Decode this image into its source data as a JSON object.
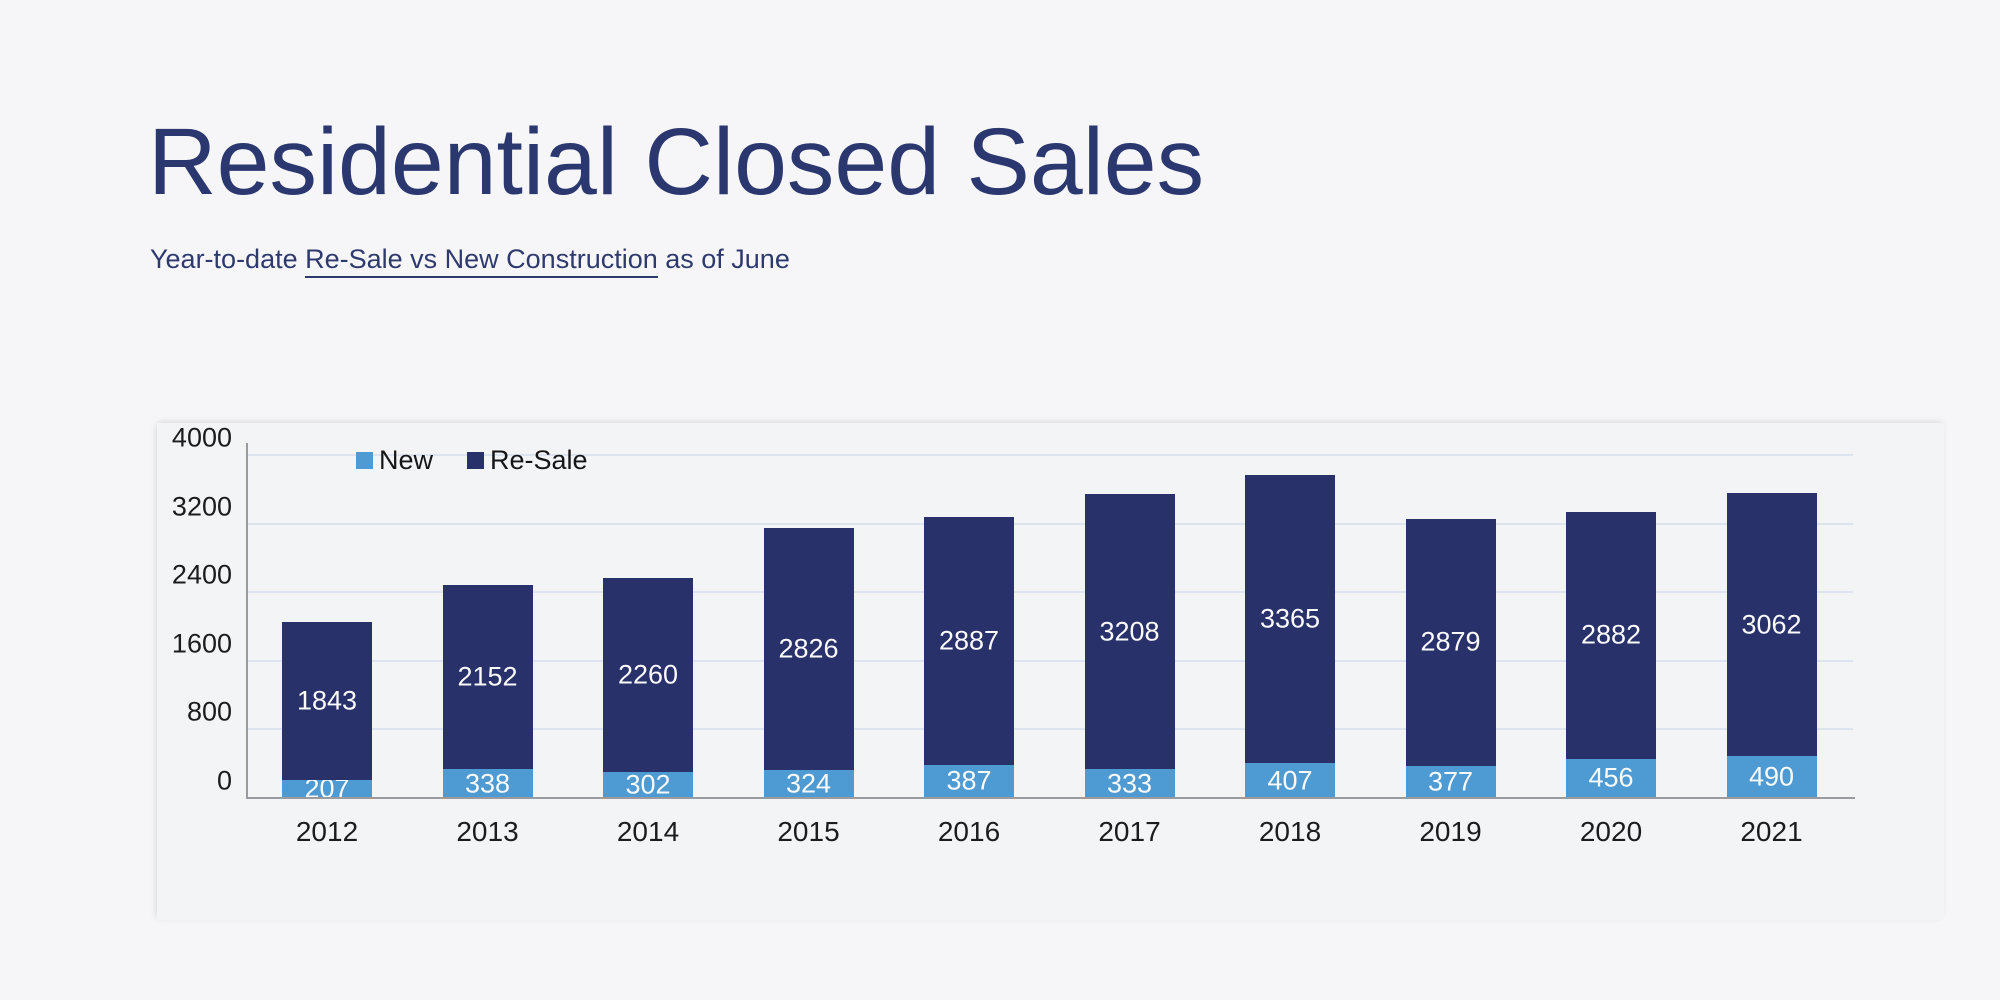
{
  "page": {
    "background": "#f6f6f8"
  },
  "header": {
    "title": "Residential Closed Sales",
    "subtitle_prefix": "Year-to-date ",
    "subtitle_underlined": "Re-Sale vs New Construction",
    "subtitle_suffix": " as of June"
  },
  "chart_data": {
    "type": "bar",
    "stacked": true,
    "title": "Residential Closed Sales",
    "subtitle": "Year-to-date Re-Sale vs New Construction as of June",
    "categories": [
      "2012",
      "2013",
      "2014",
      "2015",
      "2016",
      "2017",
      "2018",
      "2019",
      "2020",
      "2021"
    ],
    "series": [
      {
        "name": "New",
        "color": "#4e9ad2",
        "values": [
          207,
          338,
          302,
          324,
          387,
          333,
          407,
          377,
          456,
          490
        ]
      },
      {
        "name": "Re-Sale",
        "color": "#28316a",
        "values": [
          1843,
          2152,
          2260,
          2826,
          2887,
          3208,
          3365,
          2879,
          2882,
          3062
        ]
      }
    ],
    "y_ticks": [
      0,
      800,
      1600,
      2400,
      3200,
      4000
    ],
    "ylim": [
      0,
      4000
    ],
    "grid": true,
    "legend_position": "top",
    "colors": {
      "gridline": "#dde3ef",
      "axis": "#9a9aa0",
      "bar_label": "#fafafa",
      "tick_label": "#1c1c1e",
      "title": "#2b376f"
    }
  }
}
